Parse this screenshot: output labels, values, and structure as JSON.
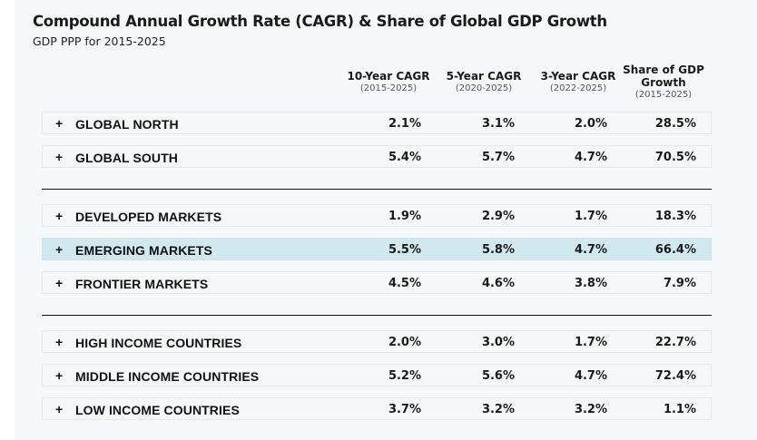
{
  "header": {
    "title": "Compound Annual Growth Rate (CAGR) & Share of Global GDP Growth",
    "subtitle": "GDP PPP for 2015-2025"
  },
  "columns": [
    {
      "label": "10-Year CAGR",
      "range": "(2015-2025)"
    },
    {
      "label": "5-Year CAGR",
      "range": "(2020-2025)"
    },
    {
      "label": "3-Year CAGR",
      "range": "(2022-2025)"
    },
    {
      "label_line1": "Share of GDP",
      "label_line2": "Growth",
      "range": "(2015-2025)"
    }
  ],
  "expand_icon": "+",
  "groups": [
    {
      "rows": [
        {
          "name": "GLOBAL NORTH",
          "values": [
            "2.1%",
            "3.1%",
            "2.0%",
            "28.5%"
          ],
          "highlighted": false
        },
        {
          "name": "GLOBAL SOUTH",
          "values": [
            "5.4%",
            "5.7%",
            "4.7%",
            "70.5%"
          ],
          "highlighted": false
        }
      ]
    },
    {
      "rows": [
        {
          "name": "DEVELOPED MARKETS",
          "values": [
            "1.9%",
            "2.9%",
            "1.7%",
            "18.3%"
          ],
          "highlighted": false
        },
        {
          "name": "EMERGING MARKETS",
          "values": [
            "5.5%",
            "5.8%",
            "4.7%",
            "66.4%"
          ],
          "highlighted": true
        },
        {
          "name": "FRONTIER MARKETS",
          "values": [
            "4.5%",
            "4.6%",
            "3.8%",
            "7.9%"
          ],
          "highlighted": false
        }
      ]
    },
    {
      "rows": [
        {
          "name": "HIGH INCOME COUNTRIES",
          "values": [
            "2.0%",
            "3.0%",
            "1.7%",
            "22.7%"
          ],
          "highlighted": false
        },
        {
          "name": "MIDDLE INCOME COUNTRIES",
          "values": [
            "5.2%",
            "5.6%",
            "4.7%",
            "72.4%"
          ],
          "highlighted": false
        },
        {
          "name": "LOW INCOME COUNTRIES",
          "values": [
            "3.7%",
            "3.2%",
            "3.2%",
            "1.1%"
          ],
          "highlighted": false
        }
      ]
    }
  ],
  "colors": {
    "highlight": "#d2e8ef",
    "panel": "#f5f8fb"
  }
}
